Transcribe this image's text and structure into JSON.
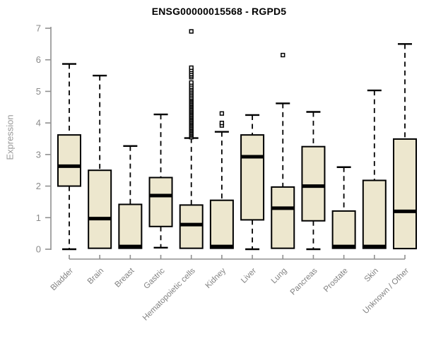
{
  "chart_data": {
    "type": "boxplot",
    "title": "ENSG00000015568 - RGPD5",
    "ylabel": "Expression",
    "xlabel": "",
    "ylim": [
      0,
      7
    ],
    "yticks": [
      0,
      1,
      2,
      3,
      4,
      5,
      6,
      7
    ],
    "grid": false,
    "legend": "none",
    "categories": [
      "Bladder",
      "Brain",
      "Breast",
      "Gastric",
      "Hematopoietic cells",
      "Kidney",
      "Liver",
      "Lung",
      "Pancreas",
      "Prostate",
      "Skin",
      "Unknown / Other"
    ],
    "series": [
      {
        "name": "Bladder",
        "whisker_low": 0,
        "q1": 2.0,
        "median": 2.63,
        "q3": 3.62,
        "whisker_high": 5.87,
        "outliers": []
      },
      {
        "name": "Brain",
        "whisker_low": 0,
        "q1": 0.03,
        "median": 0.97,
        "q3": 2.5,
        "whisker_high": 5.5,
        "outliers": []
      },
      {
        "name": "Breast",
        "whisker_low": 0,
        "q1": 0.03,
        "median": 0.07,
        "q3": 1.42,
        "whisker_high": 3.27,
        "outliers": []
      },
      {
        "name": "Gastric",
        "whisker_low": 0.05,
        "q1": 0.72,
        "median": 1.7,
        "q3": 2.27,
        "whisker_high": 4.27,
        "outliers": []
      },
      {
        "name": "Hematopoietic cells",
        "whisker_low": 0,
        "q1": 0.03,
        "median": 0.78,
        "q3": 1.4,
        "whisker_high": 3.52,
        "outliers": [
          3.55,
          3.6,
          3.64,
          3.68,
          3.72,
          3.76,
          3.8,
          3.84,
          3.88,
          3.92,
          3.96,
          4.0,
          4.04,
          4.08,
          4.12,
          4.16,
          4.2,
          4.24,
          4.28,
          4.32,
          4.36,
          4.4,
          4.44,
          4.48,
          4.52,
          4.56,
          4.6,
          4.64,
          4.68,
          4.72,
          4.76,
          4.8,
          4.85,
          4.9,
          4.95,
          5.0,
          5.05,
          5.1,
          5.15,
          5.22,
          5.28,
          5.45,
          5.5,
          5.55,
          5.62,
          5.68,
          5.75,
          6.9
        ]
      },
      {
        "name": "Kidney",
        "whisker_low": 0,
        "q1": 0.03,
        "median": 0.07,
        "q3": 1.55,
        "whisker_high": 3.72,
        "outliers": [
          3.92,
          4.0,
          4.3
        ]
      },
      {
        "name": "Liver",
        "whisker_low": 0,
        "q1": 0.93,
        "median": 2.93,
        "q3": 3.62,
        "whisker_high": 4.25,
        "outliers": []
      },
      {
        "name": "Lung",
        "whisker_low": 0.03,
        "q1": 0.03,
        "median": 1.3,
        "q3": 1.97,
        "whisker_high": 4.62,
        "outliers": [
          6.15
        ]
      },
      {
        "name": "Pancreas",
        "whisker_low": 0,
        "q1": 0.9,
        "median": 2.0,
        "q3": 3.25,
        "whisker_high": 4.35,
        "outliers": []
      },
      {
        "name": "Prostate",
        "whisker_low": 0,
        "q1": 0.03,
        "median": 0.07,
        "q3": 1.21,
        "whisker_high": 2.6,
        "outliers": []
      },
      {
        "name": "Skin",
        "whisker_low": 0,
        "q1": 0.03,
        "median": 0.07,
        "q3": 2.18,
        "whisker_high": 5.03,
        "outliers": []
      },
      {
        "name": "Unknown / Other",
        "whisker_low": 0.02,
        "q1": 0.02,
        "median": 1.2,
        "q3": 3.49,
        "whisker_high": 6.5,
        "outliers": []
      }
    ],
    "colors": {
      "box_fill": "#EDE7CE",
      "box_stroke": "#000000",
      "median": "#000000",
      "axis": "#909090",
      "tick_label": "#8a8a8a",
      "category_label": "#828282",
      "title": "#000000",
      "background": "#FFFFFF"
    }
  }
}
